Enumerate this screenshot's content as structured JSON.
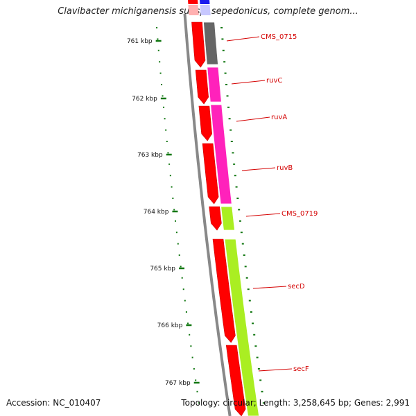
{
  "title": "Clavibacter michiganensis subsp. sepedonicus, complete genom...",
  "footer": {
    "accession": "Accession: NC_010407",
    "summary": "Topology: circular; Length: 3,258,645 bp; Genes: 2,991"
  },
  "colors": {
    "cds": "#ff0000",
    "hypothetical": "#666666",
    "ruv_genes": "#ff22bb",
    "sec_genes": "#aaee22",
    "backbone": "#888888",
    "tick": "#117711",
    "label": "#d40000",
    "top_blue": "#1a1aee"
  },
  "scale_labels": [
    "761 kbp",
    "762 kbp",
    "763 kbp",
    "764 kbp",
    "765 kbp",
    "766 kbp",
    "767 kbp"
  ],
  "genes": [
    {
      "label": "CMS_0715",
      "color": "#666666"
    },
    {
      "label": "ruvC",
      "color": "#ff22bb"
    },
    {
      "label": "ruvA",
      "color": "#ff22bb"
    },
    {
      "label": "ruvB",
      "color": "#ff22bb"
    },
    {
      "label": "CMS_0719",
      "color": "#aaee22"
    },
    {
      "label": "secD",
      "color": "#aaee22"
    },
    {
      "label": "secF",
      "color": "#aaee22"
    }
  ]
}
